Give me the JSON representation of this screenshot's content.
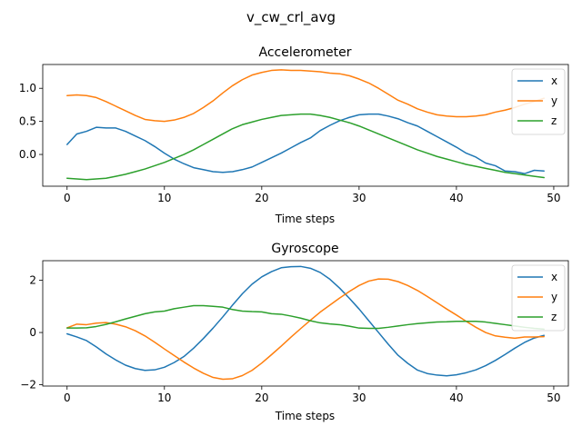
{
  "figure_title": "v_cw_crl_avg",
  "colors": {
    "x": "#1f77b4",
    "y": "#ff7f0e",
    "z": "#2ca02c"
  },
  "chart_data": [
    {
      "type": "line",
      "title": "Accelerometer",
      "xlabel": "Time steps",
      "ylabel": "",
      "xlim": [
        -2.5,
        51.5
      ],
      "ylim": [
        -0.48,
        1.36
      ],
      "xticks": [
        0,
        10,
        20,
        30,
        40,
        50
      ],
      "yticks": [
        0.0,
        0.5,
        1.0
      ],
      "ytick_labels": [
        "0.0",
        "0.5",
        "1.0"
      ],
      "legend": {
        "placement": "upper right",
        "entries": [
          "x",
          "y",
          "z"
        ]
      },
      "x": [
        0,
        1,
        2,
        3,
        4,
        5,
        6,
        7,
        8,
        9,
        10,
        11,
        12,
        13,
        14,
        15,
        16,
        17,
        18,
        19,
        20,
        21,
        22,
        23,
        24,
        25,
        26,
        27,
        28,
        29,
        30,
        31,
        32,
        33,
        34,
        35,
        36,
        37,
        38,
        39,
        40,
        41,
        42,
        43,
        44,
        45,
        46,
        47,
        48,
        49
      ],
      "series": [
        {
          "name": "x",
          "color": "#1f77b4",
          "values": [
            0.15,
            0.31,
            0.35,
            0.41,
            0.4,
            0.4,
            0.35,
            0.28,
            0.21,
            0.12,
            0.02,
            -0.07,
            -0.14,
            -0.2,
            -0.23,
            -0.26,
            -0.27,
            -0.26,
            -0.23,
            -0.19,
            -0.12,
            -0.05,
            0.02,
            0.1,
            0.18,
            0.25,
            0.36,
            0.44,
            0.51,
            0.56,
            0.6,
            0.61,
            0.61,
            0.58,
            0.54,
            0.48,
            0.43,
            0.35,
            0.27,
            0.19,
            0.11,
            0.02,
            -0.04,
            -0.13,
            -0.17,
            -0.25,
            -0.26,
            -0.29,
            -0.24,
            -0.25
          ]
        },
        {
          "name": "y",
          "color": "#ff7f0e",
          "values": [
            0.89,
            0.9,
            0.89,
            0.86,
            0.8,
            0.73,
            0.66,
            0.59,
            0.53,
            0.51,
            0.5,
            0.52,
            0.56,
            0.62,
            0.71,
            0.81,
            0.93,
            1.04,
            1.13,
            1.2,
            1.24,
            1.27,
            1.28,
            1.27,
            1.27,
            1.26,
            1.25,
            1.23,
            1.22,
            1.19,
            1.14,
            1.08,
            1.0,
            0.91,
            0.82,
            0.76,
            0.69,
            0.64,
            0.6,
            0.58,
            0.57,
            0.57,
            0.58,
            0.6,
            0.64,
            0.67,
            0.71,
            0.76,
            0.8,
            0.85
          ]
        },
        {
          "name": "z",
          "color": "#2ca02c",
          "values": [
            -0.36,
            -0.37,
            -0.38,
            -0.37,
            -0.36,
            -0.33,
            -0.3,
            -0.26,
            -0.22,
            -0.17,
            -0.12,
            -0.06,
            0.0,
            0.07,
            0.15,
            0.23,
            0.31,
            0.39,
            0.45,
            0.49,
            0.53,
            0.56,
            0.59,
            0.6,
            0.61,
            0.61,
            0.59,
            0.56,
            0.52,
            0.48,
            0.43,
            0.37,
            0.31,
            0.25,
            0.19,
            0.13,
            0.07,
            0.02,
            -0.03,
            -0.07,
            -0.11,
            -0.15,
            -0.18,
            -0.21,
            -0.24,
            -0.27,
            -0.29,
            -0.31,
            -0.33,
            -0.35
          ]
        }
      ]
    },
    {
      "type": "line",
      "title": "Gyroscope",
      "xlabel": "Time steps",
      "ylabel": "",
      "xlim": [
        -2.5,
        51.5
      ],
      "ylim": [
        -2.05,
        2.75
      ],
      "xticks": [
        0,
        10,
        20,
        30,
        40,
        50
      ],
      "yticks": [
        -2,
        0,
        2
      ],
      "ytick_labels": [
        "−2",
        "0",
        "2"
      ],
      "legend": {
        "placement": "upper right",
        "entries": [
          "x",
          "y",
          "z"
        ]
      },
      "x": [
        0,
        1,
        2,
        3,
        4,
        5,
        6,
        7,
        8,
        9,
        10,
        11,
        12,
        13,
        14,
        15,
        16,
        17,
        18,
        19,
        20,
        21,
        22,
        23,
        24,
        25,
        26,
        27,
        28,
        29,
        30,
        31,
        32,
        33,
        34,
        35,
        36,
        37,
        38,
        39,
        40,
        41,
        42,
        43,
        44,
        45,
        46,
        47,
        48,
        49
      ],
      "series": [
        {
          "name": "x",
          "color": "#1f77b4",
          "values": [
            -0.05,
            -0.17,
            -0.31,
            -0.55,
            -0.82,
            -1.05,
            -1.25,
            -1.38,
            -1.45,
            -1.43,
            -1.33,
            -1.15,
            -0.92,
            -0.6,
            -0.23,
            0.17,
            0.6,
            1.05,
            1.48,
            1.85,
            2.13,
            2.33,
            2.48,
            2.52,
            2.53,
            2.46,
            2.3,
            2.04,
            1.7,
            1.31,
            0.9,
            0.45,
            0.0,
            -0.45,
            -0.87,
            -1.18,
            -1.44,
            -1.57,
            -1.63,
            -1.66,
            -1.62,
            -1.54,
            -1.43,
            -1.27,
            -1.07,
            -0.84,
            -0.6,
            -0.38,
            -0.21,
            -0.11
          ]
        },
        {
          "name": "y",
          "color": "#ff7f0e",
          "values": [
            0.18,
            0.32,
            0.3,
            0.36,
            0.38,
            0.32,
            0.22,
            0.07,
            -0.13,
            -0.37,
            -0.63,
            -0.88,
            -1.13,
            -1.36,
            -1.56,
            -1.72,
            -1.79,
            -1.77,
            -1.65,
            -1.45,
            -1.17,
            -0.85,
            -0.52,
            -0.18,
            0.15,
            0.47,
            0.78,
            1.05,
            1.32,
            1.57,
            1.8,
            1.97,
            2.05,
            2.04,
            1.95,
            1.8,
            1.61,
            1.38,
            1.14,
            0.9,
            0.67,
            0.43,
            0.2,
            0.0,
            -0.13,
            -0.18,
            -0.22,
            -0.17,
            -0.17,
            -0.16
          ]
        },
        {
          "name": "z",
          "color": "#2ca02c",
          "values": [
            0.17,
            0.17,
            0.18,
            0.23,
            0.31,
            0.41,
            0.52,
            0.62,
            0.72,
            0.79,
            0.82,
            0.91,
            0.97,
            1.03,
            1.03,
            1.0,
            0.97,
            0.88,
            0.82,
            0.8,
            0.79,
            0.72,
            0.7,
            0.63,
            0.55,
            0.45,
            0.37,
            0.33,
            0.3,
            0.24,
            0.17,
            0.16,
            0.16,
            0.2,
            0.25,
            0.3,
            0.34,
            0.37,
            0.4,
            0.41,
            0.43,
            0.43,
            0.43,
            0.4,
            0.35,
            0.3,
            0.25,
            0.2,
            0.16,
            0.13
          ]
        }
      ]
    }
  ]
}
